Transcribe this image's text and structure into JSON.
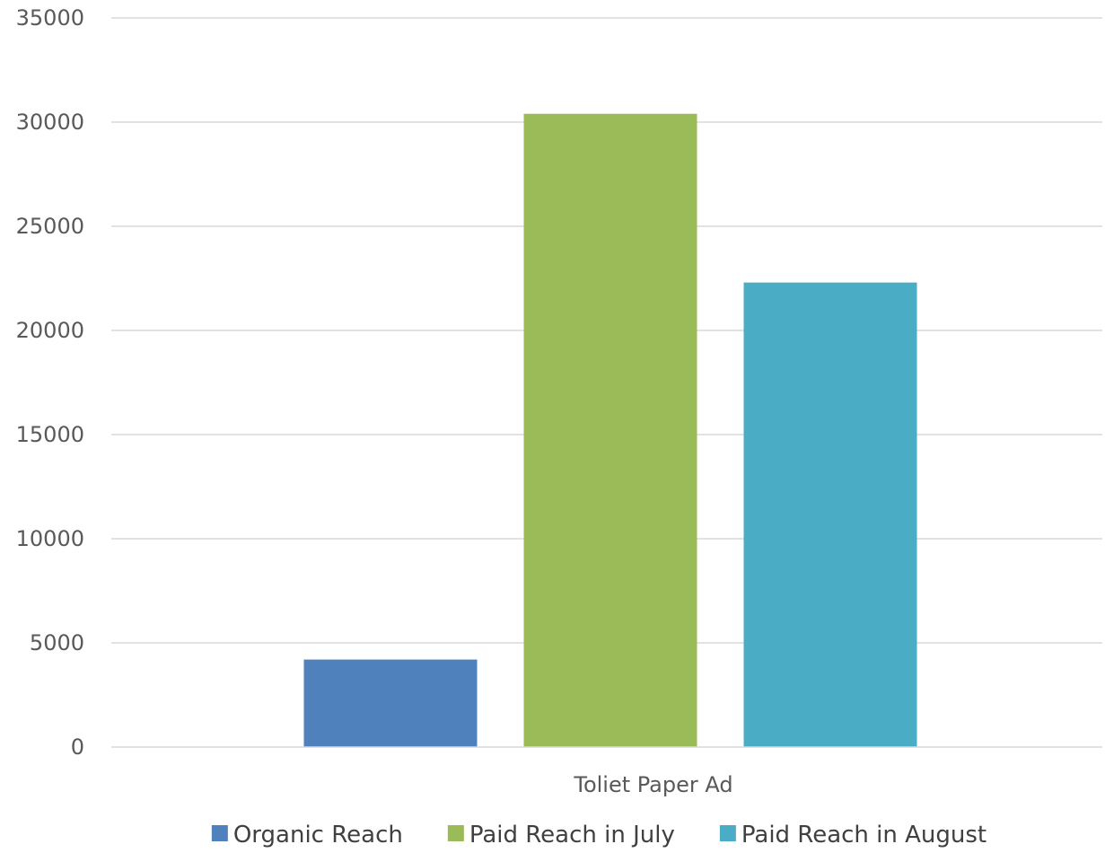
{
  "chart_data": {
    "type": "bar",
    "categories": [
      "Toliet Paper Ad"
    ],
    "series": [
      {
        "name": "Organic Reach",
        "values": [
          4200
        ],
        "color": "#4f81bd"
      },
      {
        "name": "Paid Reach in July",
        "values": [
          30400
        ],
        "color": "#9bbb59"
      },
      {
        "name": "Paid Reach in August",
        "values": [
          22300
        ],
        "color": "#4bacc6"
      }
    ],
    "ylim": [
      0,
      35000
    ],
    "yticks": [
      "0",
      "5000",
      "10000",
      "15000",
      "20000",
      "25000",
      "30000",
      "35000"
    ],
    "grid": true,
    "legend_position": "bottom"
  }
}
